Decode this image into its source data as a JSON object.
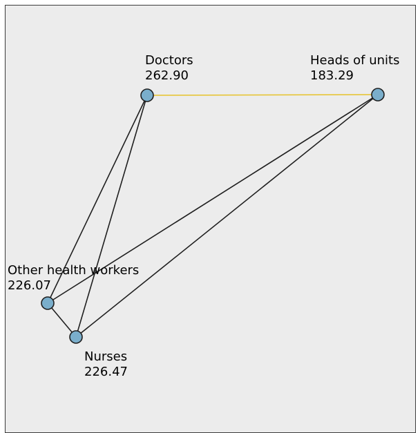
{
  "diagram": {
    "colors": {
      "background": "#ececec",
      "border": "#3a3a3a",
      "node_fill": "#7aaecb",
      "node_stroke": "#1f1f1f",
      "edge_default": "#1f1f1f",
      "edge_highlight": "#e6c229"
    },
    "nodes": [
      {
        "id": "doctors",
        "name": "Doctors",
        "value": "262.90"
      },
      {
        "id": "heads",
        "name": "Heads of units",
        "value": "183.29"
      },
      {
        "id": "other",
        "name": "Other health workers",
        "value": "226.07"
      },
      {
        "id": "nurses",
        "name": "Nurses",
        "value": "226.47"
      }
    ],
    "edges": [
      {
        "from": "doctors",
        "to": "heads",
        "highlight": true
      },
      {
        "from": "doctors",
        "to": "other",
        "highlight": false
      },
      {
        "from": "doctors",
        "to": "nurses",
        "highlight": false
      },
      {
        "from": "heads",
        "to": "other",
        "highlight": false
      },
      {
        "from": "heads",
        "to": "nurses",
        "highlight": false
      },
      {
        "from": "other",
        "to": "nurses",
        "highlight": false
      }
    ]
  }
}
